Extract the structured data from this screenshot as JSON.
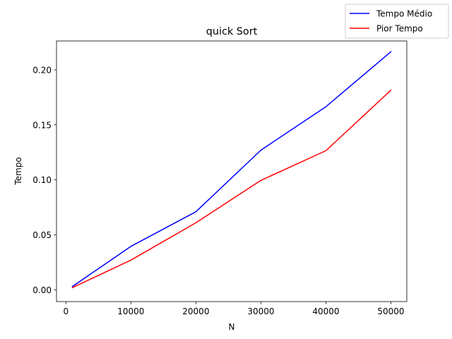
{
  "chart_data": {
    "type": "line",
    "title": "quick Sort",
    "xlabel": "N",
    "ylabel": "Tempo",
    "xlim": [
      -1450,
      52450
    ],
    "ylim": [
      -0.0107,
      0.2263
    ],
    "x_ticks": [
      0,
      10000,
      20000,
      30000,
      40000,
      50000
    ],
    "x_tick_labels": [
      "0",
      "10000",
      "20000",
      "30000",
      "40000",
      "50000"
    ],
    "y_ticks": [
      0.0,
      0.05,
      0.1,
      0.15,
      0.2
    ],
    "y_tick_labels": [
      "0.00",
      "0.05",
      "0.10",
      "0.15",
      "0.20"
    ],
    "grid": false,
    "legend_position": "top-right (outside plot)",
    "x": [
      1000,
      10000,
      20000,
      30000,
      40000,
      50000
    ],
    "series": [
      {
        "name": "Tempo Médio",
        "color": "#0000ff",
        "values": [
          0.003,
          0.0395,
          0.071,
          0.127,
          0.1665,
          0.2165
        ]
      },
      {
        "name": "Pior Tempo",
        "color": "#ff0000",
        "values": [
          0.002,
          0.027,
          0.061,
          0.0995,
          0.1265,
          0.1815
        ]
      }
    ]
  }
}
